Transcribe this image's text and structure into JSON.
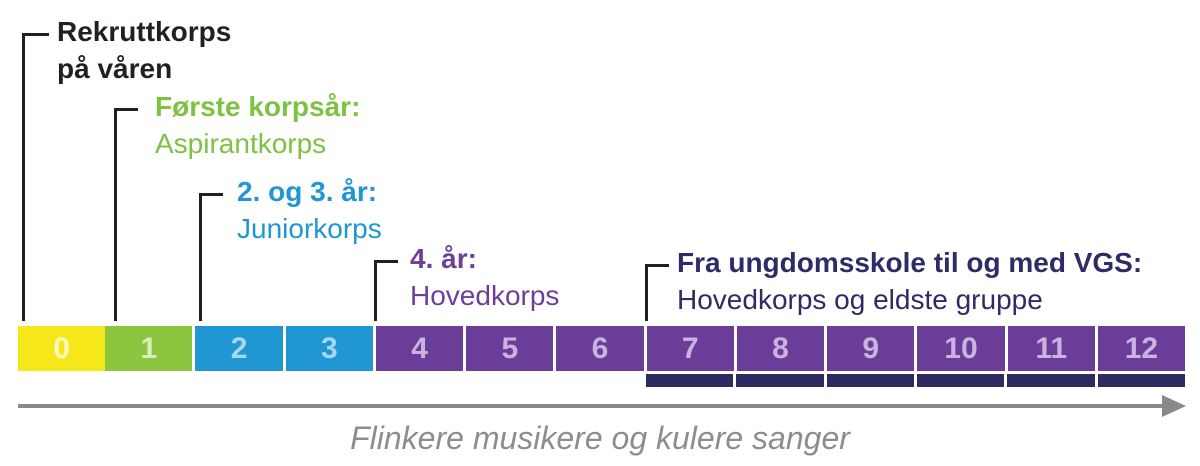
{
  "timeline": {
    "segments": [
      {
        "value": "0",
        "color": "#f5e71a",
        "label_color": "#fbf7c0",
        "underline": false
      },
      {
        "value": "1",
        "color": "#8cc63f",
        "label_color": "#dcedc4",
        "underline": false
      },
      {
        "value": "2",
        "color": "#2096d3",
        "label_color": "#a5d8f0",
        "underline": false
      },
      {
        "value": "3",
        "color": "#2096d3",
        "label_color": "#a5d8f0",
        "underline": false
      },
      {
        "value": "4",
        "color": "#6a3e98",
        "label_color": "#cab4df",
        "underline": false
      },
      {
        "value": "5",
        "color": "#6a3e98",
        "label_color": "#cab4df",
        "underline": false
      },
      {
        "value": "6",
        "color": "#6a3e98",
        "label_color": "#cab4df",
        "underline": false
      },
      {
        "value": "7",
        "color": "#6a3e98",
        "label_color": "#cab4df",
        "underline": true
      },
      {
        "value": "8",
        "color": "#6a3e98",
        "label_color": "#cab4df",
        "underline": true
      },
      {
        "value": "9",
        "color": "#6a3e98",
        "label_color": "#cab4df",
        "underline": true
      },
      {
        "value": "10",
        "color": "#6a3e98",
        "label_color": "#cab4df",
        "underline": true
      },
      {
        "value": "11",
        "color": "#6a3e98",
        "label_color": "#cab4df",
        "underline": true
      },
      {
        "value": "12",
        "color": "#6a3e98",
        "label_color": "#cab4df",
        "underline": true
      }
    ],
    "underline_color": "#2d2a64"
  },
  "annotations": [
    {
      "id": "rekruttkorps",
      "heading": "Rekruttkorps",
      "body": "på våren",
      "color": "#231f20"
    },
    {
      "id": "aspirantkorps",
      "heading": "Første korpsår:",
      "body": "Aspirantkorps",
      "color": "#7dc243"
    },
    {
      "id": "juniorkorps",
      "heading": "2. og 3. år:",
      "body": "Juniorkorps",
      "color": "#2096d3"
    },
    {
      "id": "hovedkorps",
      "heading": "4. år:",
      "body": "Hovedkorps",
      "color": "#6d3f9b"
    },
    {
      "id": "eldste-gruppe",
      "heading": "Fra ungdomsskole til og med VGS:",
      "body": "Hovedkorps og eldste gruppe",
      "color": "#2e2b66"
    }
  ],
  "axis": {
    "caption": "Flinkere musikere og kulere sanger",
    "arrow_color": "#87898c",
    "caption_color": "#8b8d90"
  }
}
